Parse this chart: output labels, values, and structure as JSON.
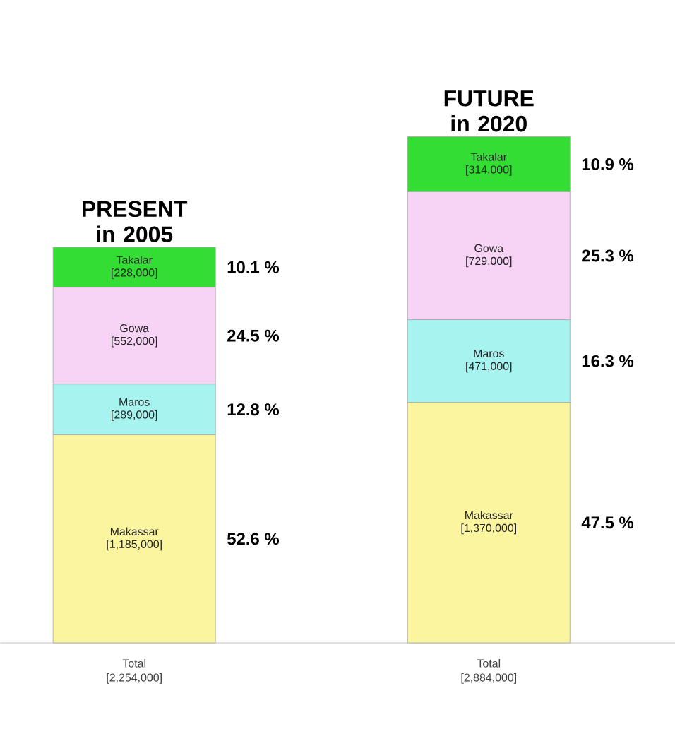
{
  "chart_data": {
    "type": "bar",
    "stacked": true,
    "categories": [
      "PRESENT in 2005",
      "FUTURE in 2020"
    ],
    "series": [
      {
        "name": "Makassar",
        "color": "#fbf5a0",
        "values": [
          1185000,
          1370000
        ],
        "value_labels": [
          "[1,185,000]",
          "[1,370,000]"
        ]
      },
      {
        "name": "Maros",
        "color": "#a6f3f0",
        "values": [
          289000,
          471000
        ],
        "value_labels": [
          "[289,000]",
          "[471,000]"
        ]
      },
      {
        "name": "Gowa",
        "color": "#f7d4f5",
        "values": [
          552000,
          729000
        ],
        "value_labels": [
          "[552,000]",
          "[729,000]"
        ]
      },
      {
        "name": "Takalar",
        "color": "#33dd33",
        "values": [
          228000,
          314000
        ],
        "value_labels": [
          "[228,000]",
          "[314,000]"
        ]
      }
    ],
    "totals": [
      "Total [2,254,000]",
      "Total [2,884,000]"
    ],
    "annotations": [
      "52.6 %",
      "12.8 %",
      "24.5 %",
      "10.1 %",
      "47.5 %",
      "16.3 %",
      "25.3 %",
      "10.9 %"
    ]
  }
}
